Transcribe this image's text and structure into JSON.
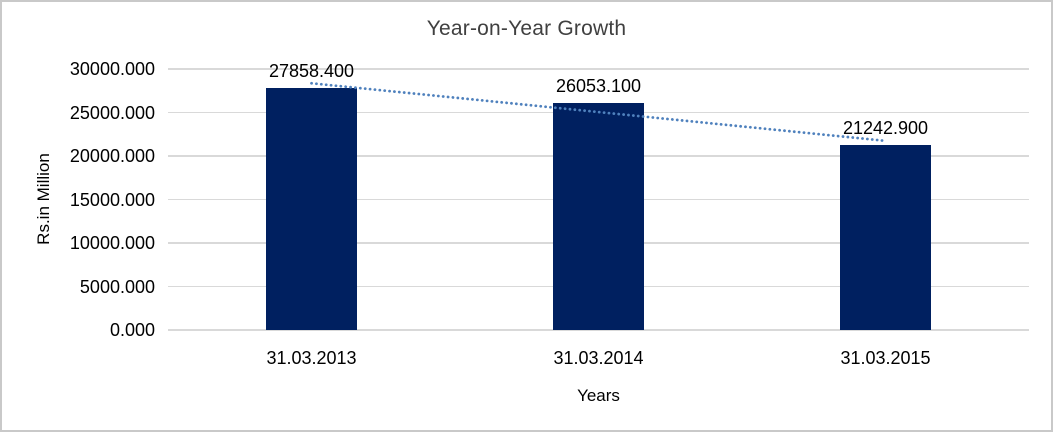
{
  "frame": {
    "background": "#ffffff",
    "border_color": "#c9c9c9"
  },
  "chart_data": {
    "type": "bar",
    "title": "Year-on-Year Growth",
    "categories": [
      "31.03.2013",
      "31.03.2014",
      "31.03.2015"
    ],
    "values": [
      27858.4,
      26053.1,
      21242.9
    ],
    "value_labels": [
      "27858.400",
      "26053.100",
      "21242.900"
    ],
    "xlabel": "Years",
    "ylabel": "Rs.in Million",
    "ylim": [
      0,
      30000
    ],
    "ytick_step": 5000,
    "ytick_labels": [
      "0.000",
      "5000.000",
      "10000.000",
      "15000.000",
      "20000.000",
      "25000.000",
      "30000.000"
    ],
    "grid": true,
    "legend": "none",
    "trendline": {
      "type": "linear",
      "style": "dotted",
      "color": "#4F81BD"
    },
    "colors": {
      "bar": "#002060",
      "gridline": "#d9d9d9",
      "title_text": "#404040",
      "axis_text": "#000000"
    }
  }
}
